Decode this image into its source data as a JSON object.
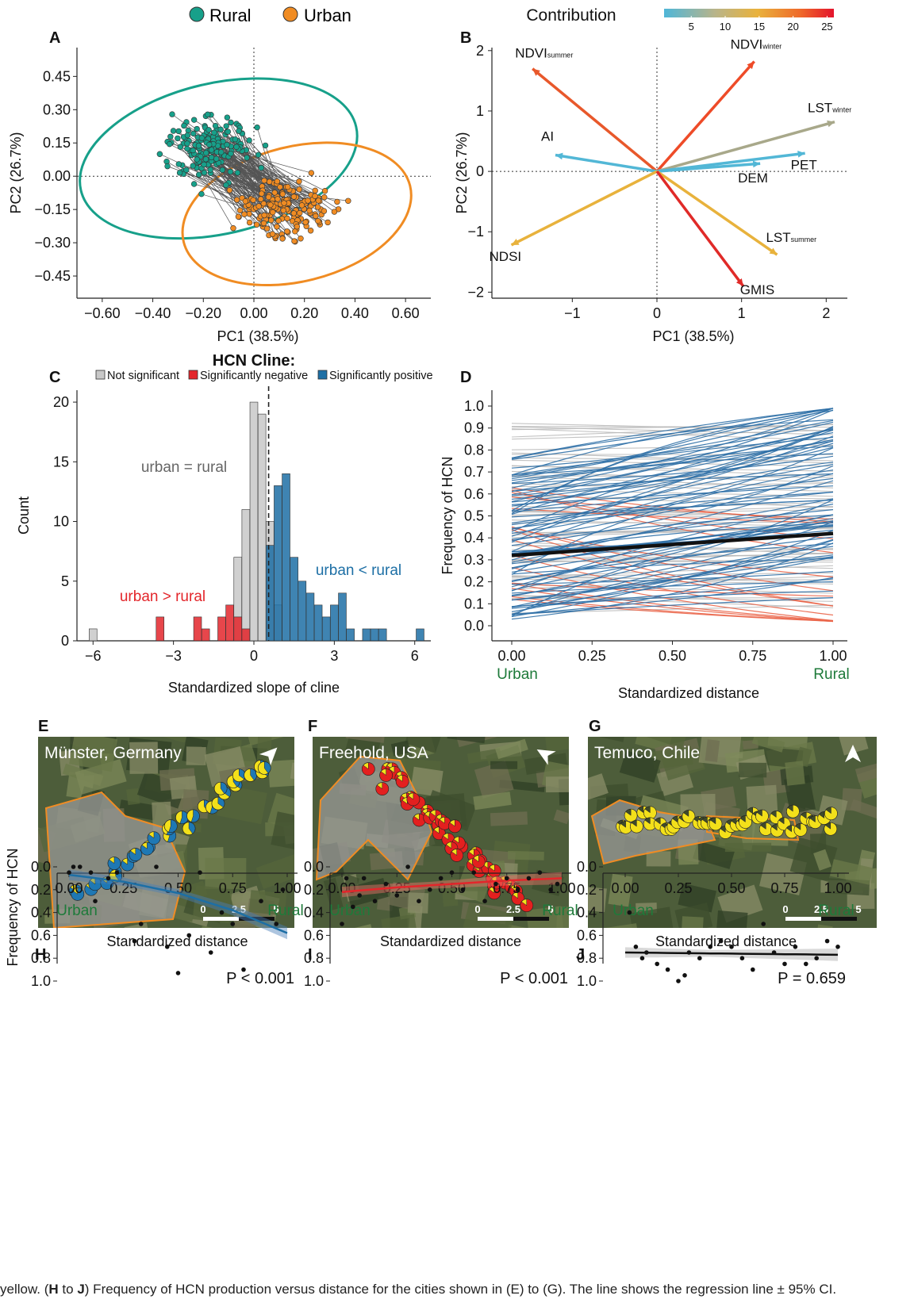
{
  "legend_top": {
    "rural": "Rural",
    "urban": "Urban",
    "rural_color": "#17a08a",
    "urban_color": "#f08c23"
  },
  "panel_letters": [
    "A",
    "B",
    "C",
    "D",
    "E",
    "F",
    "G",
    "H",
    "I",
    "J"
  ],
  "panelA": {
    "xlabel": "PC1 (38.5%)",
    "ylabel": "PC2 (26.7%)",
    "xticks": [
      "−0.60",
      "−0.40",
      "−0.20",
      "0.00",
      "0.20",
      "0.40",
      "0.60"
    ],
    "yticks": [
      "0.45",
      "0.30",
      "0.15",
      "0.00",
      "−0.15",
      "−0.30",
      "−0.45"
    ]
  },
  "panelB": {
    "title": "Contribution",
    "colorbar_ticks": [
      "5",
      "10",
      "15",
      "20",
      "25"
    ],
    "xlabel": "PC1 (38.5%)",
    "ylabel": "PC2 (26.7%)",
    "xticks": [
      "−1",
      "0",
      "1",
      "2"
    ],
    "yticks": [
      "2",
      "1",
      "0",
      "−1",
      "−2"
    ],
    "vectors": [
      {
        "label": "NDVI",
        "sub": "summer",
        "x": -1.47,
        "y": 1.7,
        "color": "#e8582b"
      },
      {
        "label": "NDVI",
        "sub": "winter",
        "x": 1.15,
        "y": 1.82,
        "color": "#ee4b28"
      },
      {
        "label": "LST",
        "sub": "winter",
        "x": 2.1,
        "y": 0.82,
        "color": "#a8a88a"
      },
      {
        "label": "AI",
        "sub": "",
        "x": -1.2,
        "y": 0.27,
        "color": "#52b7d6"
      },
      {
        "label": "PET",
        "sub": "",
        "x": 1.75,
        "y": 0.3,
        "color": "#52b7d6"
      },
      {
        "label": "DEM",
        "sub": "",
        "x": 1.22,
        "y": 0.13,
        "color": "#52b7d6"
      },
      {
        "label": "NDSI",
        "sub": "",
        "x": -1.72,
        "y": -1.22,
        "color": "#e8b23c"
      },
      {
        "label": "LST",
        "sub": "summer",
        "x": 1.42,
        "y": -1.38,
        "color": "#e8b23c"
      },
      {
        "label": "GMIS",
        "sub": "",
        "x": 1.02,
        "y": -1.9,
        "color": "#e02a28"
      }
    ]
  },
  "panelC": {
    "title": "HCN Cline:",
    "legend": [
      "Not significant",
      "Significantly negative",
      "Significantly positive"
    ],
    "colors": {
      "ns": "#c8c8c8",
      "neg": "#e3262b",
      "pos": "#1d6fa5"
    },
    "xlabel": "Standardized slope of cline",
    "ylabel": "Count",
    "xticks": [
      "−6",
      "−3",
      "0",
      "3",
      "6"
    ],
    "yticks": [
      "0",
      "5",
      "10",
      "15",
      "20"
    ],
    "annotations": {
      "equal": "urban = rural",
      "greater": "urban > rural",
      "less": "urban < rural"
    }
  },
  "panelD": {
    "xlabel": "Standardized distance",
    "ylabel": "Frequency of HCN",
    "xticks": [
      "0.00",
      "0.25",
      "0.50",
      "0.75",
      "1.00"
    ],
    "yticks": [
      "1.0",
      "0.9",
      "0.8",
      "0.7",
      "0.6",
      "0.5",
      "0.4",
      "0.3",
      "0.2",
      "0.1",
      "0.0"
    ],
    "urban": "Urban",
    "rural": "Rural"
  },
  "maps": [
    {
      "title": "Münster, Germany",
      "scale": [
        "0",
        "2.5",
        "5"
      ]
    },
    {
      "title": "Freehold, USA",
      "scale": [
        "0",
        "2.5",
        "5"
      ]
    },
    {
      "title": "Temuco, Chile",
      "scale": [
        "0",
        "2.5",
        "5"
      ]
    }
  ],
  "bottom": {
    "xlabel": "Standardized distance",
    "ylabel": "Frequency of HCN",
    "xticks": [
      "0.00",
      "0.25",
      "0.50",
      "0.75",
      "1.00"
    ],
    "yticks": [
      "1.0",
      "0.8",
      "0.6",
      "0.4",
      "0.2",
      "0.0"
    ],
    "urban": "Urban",
    "rural": "Rural",
    "pvalues": [
      "P < 0.001",
      "P < 0.001",
      "P = 0.659"
    ]
  },
  "caption": {
    "pre": "yellow. (",
    "b1": "H",
    "mid1": " to ",
    "b2": "J",
    "post": ") Frequency of HCN production versus distance for the cities shown in (E) to (G). The line shows the regression line ± 95% CI."
  },
  "chart_data": [
    {
      "type": "scatter",
      "panel": "A",
      "xlabel": "PC1 (38.5%)",
      "ylabel": "PC2 (26.7%)",
      "xlim": [
        -0.7,
        0.7
      ],
      "ylim": [
        -0.55,
        0.58
      ],
      "series": [
        {
          "name": "Rural",
          "x": [
            -0.55,
            -0.45,
            -0.4,
            -0.35,
            -0.3,
            -0.28,
            -0.25,
            -0.2,
            -0.15,
            -0.1,
            -0.05,
            0.0,
            0.05,
            0.1,
            0.15,
            -0.32,
            -0.22,
            -0.12,
            -0.02,
            0.08
          ],
          "y": [
            0.15,
            0.2,
            0.1,
            0.3,
            0.05,
            0.25,
            0.15,
            0.35,
            0.2,
            0.4,
            0.25,
            0.3,
            0.2,
            0.35,
            0.15,
            0.02,
            0.1,
            0.28,
            0.45,
            0.22
          ]
        },
        {
          "name": "Urban",
          "x": [
            -0.2,
            -0.1,
            0.0,
            0.1,
            0.2,
            0.3,
            0.4,
            0.5,
            0.6,
            -0.05,
            0.05,
            0.15,
            0.25,
            0.35,
            0.45,
            0.55,
            0.12,
            0.28,
            -0.15,
            0.38
          ],
          "y": [
            -0.2,
            -0.3,
            -0.1,
            -0.25,
            -0.15,
            -0.05,
            -0.2,
            -0.1,
            -0.18,
            -0.4,
            0.0,
            -0.35,
            0.05,
            -0.28,
            0.02,
            -0.22,
            0.1,
            -0.12,
            -0.05,
            -0.38
          ]
        }
      ]
    },
    {
      "type": "heatmap",
      "panel": "B",
      "note": "PCA biplot"
    },
    {
      "type": "bar",
      "panel": "C",
      "xlabel": "Standardized slope of cline",
      "ylabel": "Count",
      "xlim": [
        -6.6,
        6.6
      ],
      "ylim": [
        0,
        21
      ],
      "x": [
        -6,
        -3.5,
        -2.1,
        -1.8,
        -1.2,
        -0.9,
        -0.6,
        -0.3,
        0,
        0.3,
        0.6,
        0.9,
        1.2,
        1.5,
        1.8,
        2.1,
        2.4,
        2.7,
        3.0,
        3.3,
        3.6,
        4.2,
        4.5,
        4.8,
        6.2
      ],
      "series": [
        {
          "name": "Not significant",
          "values": [
            1,
            0,
            0,
            0,
            0,
            0,
            7,
            11,
            20,
            19,
            10,
            3,
            0,
            0,
            0,
            0,
            0,
            0,
            0,
            0,
            0,
            0,
            0,
            0,
            0
          ]
        },
        {
          "name": "Significantly negative",
          "values": [
            0,
            2,
            2,
            1,
            2,
            3,
            2,
            1,
            0,
            0,
            0,
            0,
            0,
            0,
            0,
            0,
            0,
            0,
            0,
            0,
            0,
            0,
            0,
            0,
            0
          ]
        },
        {
          "name": "Significantly positive",
          "values": [
            0,
            0,
            0,
            0,
            0,
            0,
            0,
            0,
            0,
            0,
            8,
            13,
            14,
            7,
            5,
            4,
            3,
            2,
            3,
            4,
            1,
            1,
            1,
            1,
            1
          ]
        }
      ]
    },
    {
      "type": "line",
      "panel": "D",
      "xlabel": "Standardized distance",
      "ylabel": "Frequency of HCN",
      "xlim": [
        0,
        1
      ],
      "ylim": [
        0,
        1
      ],
      "series": [
        {
          "name": "Overall",
          "x": [
            0,
            1
          ],
          "y": [
            0.32,
            0.42
          ]
        }
      ]
    },
    {
      "type": "scatter",
      "panel": "H",
      "xlim": [
        0,
        1
      ],
      "ylim": [
        0,
        1
      ],
      "series": [
        {
          "x": [
            0.0,
            0.02,
            0.05,
            0.1,
            0.12,
            0.18,
            0.22,
            0.3,
            0.33,
            0.4,
            0.45,
            0.5,
            0.55,
            0.6,
            0.65,
            0.7,
            0.75,
            0.8,
            0.88,
            0.95,
            0.98
          ],
          "y": [
            0.05,
            0.0,
            0.0,
            0.05,
            0.3,
            0.1,
            0.05,
            0.65,
            0.5,
            0.0,
            0.7,
            0.93,
            0.6,
            0.05,
            0.75,
            0.4,
            0.5,
            0.9,
            0.3,
            0.5,
            0.2
          ]
        },
        {
          "name": "fit",
          "x": [
            0,
            0.25,
            0.5,
            0.75,
            1.0
          ],
          "y": [
            0.07,
            0.13,
            0.23,
            0.38,
            0.58
          ]
        }
      ]
    },
    {
      "type": "scatter",
      "panel": "I",
      "xlim": [
        0,
        1
      ],
      "ylim": [
        0,
        1
      ],
      "series": [
        {
          "x": [
            0.0,
            0.02,
            0.05,
            0.08,
            0.1,
            0.15,
            0.2,
            0.25,
            0.3,
            0.35,
            0.4,
            0.45,
            0.5,
            0.55,
            0.6,
            0.65,
            0.7,
            0.75,
            0.8,
            0.85,
            0.9,
            0.95,
            0.98
          ],
          "y": [
            0.5,
            0.1,
            0.35,
            0.25,
            0.1,
            0.3,
            0.15,
            0.25,
            0.0,
            0.3,
            0.2,
            0.1,
            0.05,
            0.2,
            0.05,
            0.3,
            0.15,
            0.1,
            0.2,
            0.1,
            0.05,
            0.2,
            0.15
          ]
        },
        {
          "name": "fit",
          "x": [
            0,
            0.25,
            0.5,
            0.75,
            1.0
          ],
          "y": [
            0.22,
            0.18,
            0.15,
            0.12,
            0.1
          ]
        }
      ]
    },
    {
      "type": "scatter",
      "panel": "J",
      "xlim": [
        0,
        1
      ],
      "ylim": [
        0,
        1
      ],
      "series": [
        {
          "x": [
            0.02,
            0.05,
            0.08,
            0.1,
            0.15,
            0.2,
            0.25,
            0.28,
            0.3,
            0.35,
            0.4,
            0.45,
            0.5,
            0.55,
            0.6,
            0.65,
            0.7,
            0.75,
            0.8,
            0.85,
            0.9,
            0.95,
            1.0
          ],
          "y": [
            0.4,
            0.7,
            0.8,
            0.75,
            0.85,
            0.9,
            1.0,
            0.95,
            0.75,
            0.8,
            0.7,
            0.65,
            0.7,
            0.8,
            0.9,
            0.5,
            0.75,
            0.85,
            0.7,
            0.85,
            0.8,
            0.65,
            0.7
          ]
        },
        {
          "name": "fit",
          "x": [
            0,
            1
          ],
          "y": [
            0.75,
            0.77
          ]
        }
      ]
    }
  ]
}
